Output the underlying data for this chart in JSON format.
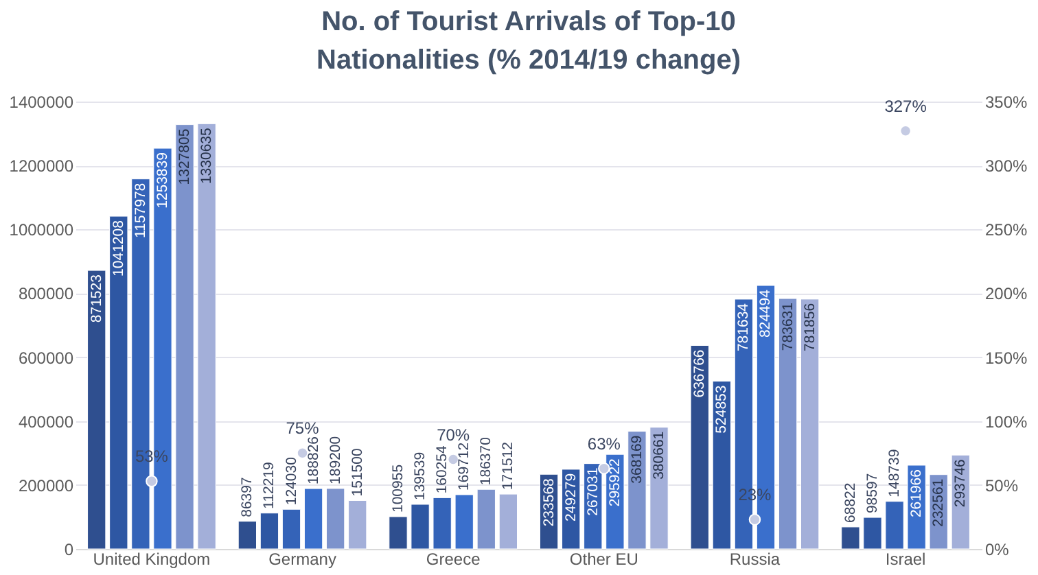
{
  "chart_data": {
    "type": "bar",
    "title": "No. of Tourist Arrivals of Top-10 Nationalities (% 2014/19 change)",
    "categories": [
      "United Kingdom",
      "Germany",
      "Greece",
      "Other EU",
      "Russia",
      "Israel"
    ],
    "series": [
      {
        "color": "#2f4f8f",
        "values": [
          871523,
          86397,
          100955,
          233568,
          636766,
          68822
        ]
      },
      {
        "color": "#2e57a3",
        "values": [
          1041208,
          112219,
          139539,
          249279,
          524853,
          98597
        ]
      },
      {
        "color": "#3463b8",
        "values": [
          1157978,
          124030,
          160254,
          267031,
          781634,
          148739
        ]
      },
      {
        "color": "#3a6fcc",
        "values": [
          1253839,
          188826,
          169712,
          295922,
          824494,
          261966
        ]
      },
      {
        "color": "#7d93cc",
        "values": [
          1327805,
          189200,
          186370,
          368169,
          783631,
          232561
        ]
      },
      {
        "color": "#a3afd9",
        "values": [
          1330635,
          151500,
          171512,
          380661,
          781856,
          293746
        ]
      },
      {
        "type": "scatter",
        "axis": "y2",
        "color": "#c5cbe3",
        "marker": "circle",
        "values": [
          53,
          75,
          70,
          63,
          23,
          327
        ],
        "value_labels": [
          "53%",
          "75%",
          "70%",
          "63%",
          "23%",
          "327%"
        ]
      }
    ],
    "data_labels": true,
    "ylim": [
      0,
      1400000
    ],
    "yticks": [
      0,
      200000,
      400000,
      600000,
      800000,
      1000000,
      1200000,
      1400000
    ],
    "y2lim": [
      0,
      350
    ],
    "y2ticks": [
      {
        "value": 0,
        "label": "0%"
      },
      {
        "value": 50,
        "label": "50%"
      },
      {
        "value": 100,
        "label": "100%"
      },
      {
        "value": 150,
        "label": "150%"
      },
      {
        "value": 200,
        "label": "200%"
      },
      {
        "value": 250,
        "label": "250%"
      },
      {
        "value": 300,
        "label": "300%"
      },
      {
        "value": 350,
        "label": "350%"
      }
    ],
    "grid": "y",
    "legend": false
  }
}
